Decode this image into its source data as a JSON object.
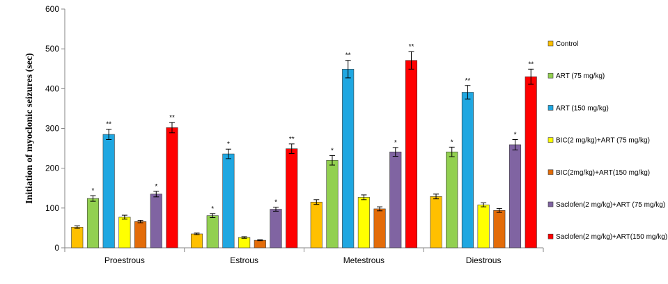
{
  "chart_data": {
    "type": "bar",
    "ylabel": "Initiation of myoclonic seizures (sec)",
    "xlabel": "",
    "ylim": [
      0,
      600
    ],
    "yticks": [
      0,
      100,
      200,
      300,
      400,
      500,
      600
    ],
    "grid": false,
    "legend_position": "right",
    "categories": [
      "Proestrous",
      "Estrous",
      "Metestrous",
      "Diestrous"
    ],
    "series": [
      {
        "name": "Control",
        "color": "#FFC000",
        "values": [
          52,
          35,
          115,
          129
        ],
        "errors": [
          3,
          2,
          6,
          6
        ],
        "significance": [
          "",
          "",
          "",
          ""
        ]
      },
      {
        "name": "ART (75 mg/kg)",
        "color": "#92D050",
        "values": [
          124,
          81,
          220,
          241
        ],
        "errors": [
          7,
          5,
          12,
          12
        ],
        "significance": [
          "*",
          "*",
          "*",
          "*"
        ]
      },
      {
        "name": "ART (150 mg/kg)",
        "color": "#1FA7E1",
        "values": [
          285,
          236,
          449,
          391
        ],
        "errors": [
          13,
          12,
          22,
          17
        ],
        "significance": [
          "**",
          "*",
          "**",
          "**"
        ]
      },
      {
        "name": "BIC(2 mg/kg)+ART (75 mg/kg)",
        "color": "#FFFF00",
        "values": [
          77,
          26,
          127,
          108
        ],
        "errors": [
          5,
          2,
          6,
          5
        ],
        "significance": [
          "",
          "",
          "",
          ""
        ]
      },
      {
        "name": "BIC(2mg/kg)+ART(150 mg/kg)",
        "color": "#E36C09",
        "values": [
          66,
          19,
          98,
          94
        ],
        "errors": [
          3,
          1,
          5,
          5
        ],
        "significance": [
          "",
          "",
          "",
          ""
        ]
      },
      {
        "name": "Saclofen(2 mg/kg)+ART (75 mg/kg)",
        "color": "#8064A2",
        "values": [
          135,
          97,
          241,
          259
        ],
        "errors": [
          7,
          5,
          11,
          13
        ],
        "significance": [
          "*",
          "*",
          "*",
          "*"
        ]
      },
      {
        "name": "Saclofen(2 mg/kg)+ART(150 mg/kg)",
        "color": "#FF0000",
        "values": [
          302,
          249,
          471,
          430
        ],
        "errors": [
          13,
          12,
          22,
          19
        ],
        "significance": [
          "**",
          "**",
          "**",
          "**"
        ]
      }
    ]
  }
}
